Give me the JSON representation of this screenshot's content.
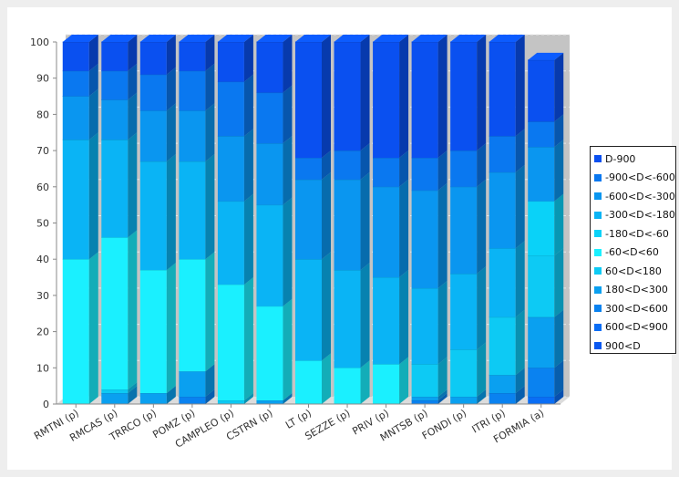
{
  "chart_data": {
    "type": "bar",
    "stacked": true,
    "three_d": true,
    "categories": [
      "RMTNI (p)",
      "RMCAS (p)",
      "TRRCO (p)",
      "POMZ (p)",
      "CAMPLEO (p)",
      "CSTRN (p)",
      "LT (p)",
      "SEZZE (p)",
      "PRIV (p)",
      "MNTSB (p)",
      "FONDI (p)",
      "ITRI (p)",
      "FORMIA (a)"
    ],
    "ylim": [
      0,
      100
    ],
    "yticks": [
      0,
      10,
      20,
      30,
      40,
      50,
      60,
      70,
      80,
      90,
      100
    ],
    "grid": true,
    "legend_position": "right",
    "series": [
      {
        "name": "900<D",
        "color": "#0a58f0",
        "values": [
          0,
          0,
          0,
          0,
          0,
          0,
          0,
          0,
          0,
          0,
          0,
          0,
          0
        ]
      },
      {
        "name": "600<D<900",
        "color": "#0a6ef5",
        "values": [
          0,
          0,
          0,
          0,
          0,
          0,
          0,
          0,
          0,
          0,
          0,
          0,
          2
        ]
      },
      {
        "name": "300<D<600",
        "color": "#0a82f0",
        "values": [
          0,
          0,
          0,
          2,
          0,
          0,
          0,
          0,
          0,
          1,
          0,
          3,
          8
        ]
      },
      {
        "name": "180<D<300",
        "color": "#0aa0f0",
        "values": [
          0,
          3,
          3,
          7,
          0,
          1,
          0,
          0,
          0,
          1,
          2,
          5,
          14
        ]
      },
      {
        "name": "60<D<180",
        "color": "#0dcaf4",
        "values": [
          0,
          1,
          0,
          0,
          1,
          0,
          0,
          0,
          0,
          9,
          13,
          16,
          17
        ]
      },
      {
        "name": "-60<D<60",
        "color": "#1af0ff",
        "values": [
          40,
          42,
          34,
          31,
          32,
          26,
          12,
          10,
          11,
          0,
          0,
          0,
          0
        ]
      },
      {
        "name": "-180<D<-60",
        "color": "#0ad2f8",
        "values": [
          0,
          0,
          0,
          0,
          0,
          0,
          0,
          0,
          0,
          0,
          0,
          0,
          15
        ]
      },
      {
        "name": "-300<D<-180",
        "color": "#0ab4f5",
        "values": [
          33,
          27,
          30,
          27,
          23,
          28,
          28,
          27,
          24,
          21,
          21,
          19,
          0
        ]
      },
      {
        "name": "-600<D<-300",
        "color": "#0a96f0",
        "values": [
          12,
          11,
          14,
          14,
          18,
          17,
          22,
          25,
          25,
          27,
          24,
          21,
          15
        ]
      },
      {
        "name": "-900<D<-600",
        "color": "#0a78f0",
        "values": [
          7,
          8,
          10,
          11,
          15,
          14,
          6,
          8,
          8,
          9,
          10,
          10,
          7
        ]
      },
      {
        "name": "D-900",
        "color": "#0a50f0",
        "values": [
          8,
          8,
          9,
          8,
          11,
          14,
          32,
          30,
          32,
          32,
          30,
          26,
          17
        ]
      }
    ],
    "legend_order": [
      "D-900",
      "-900<D<-600",
      "-600<D<-300",
      "-300<D<-180",
      "-180<D<-60",
      "-60<D<60",
      "60<D<180",
      "180<D<300",
      "300<D<600",
      "600<D<900",
      "900<D"
    ]
  }
}
